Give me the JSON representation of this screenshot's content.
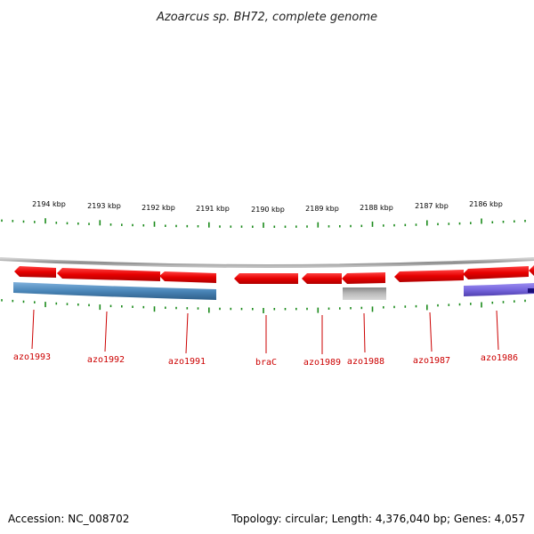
{
  "title": "Azoarcus sp. BH72, complete genome",
  "footer": {
    "accession": "Accession: NC_008702",
    "summary": "Topology: circular; Length: 4,376,040 bp; Genes: 4,057"
  },
  "colors": {
    "forward_gene": "#e60000",
    "track_gray": "#999999",
    "tick_green": "#1a8a1a",
    "label_red": "#cc0000",
    "blue_feature": "#4a86b8",
    "purple_feature": "#7766dd",
    "gray_feature": "#aaaaaa"
  },
  "scale": {
    "unit": "kbp",
    "labels": [
      "2194 kbp",
      "2193 kbp",
      "2192 kbp",
      "2191 kbp",
      "2190 kbp",
      "2189 kbp",
      "2188 kbp",
      "2187 kbp",
      "2186 kbp"
    ]
  },
  "genes": [
    {
      "name": "azo1993"
    },
    {
      "name": "azo1992"
    },
    {
      "name": "azo1991"
    },
    {
      "name": "braC"
    },
    {
      "name": "azo1989"
    },
    {
      "name": "azo1988"
    },
    {
      "name": "azo1987"
    },
    {
      "name": "azo1986"
    }
  ]
}
